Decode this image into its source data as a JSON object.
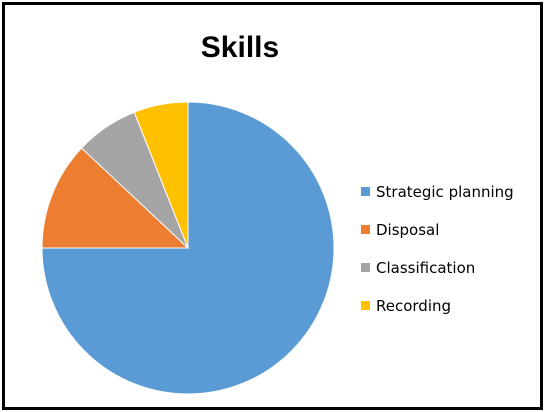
{
  "chart_data": {
    "type": "pie",
    "title": "Skills",
    "categories": [
      "Strategic planning",
      "Disposal",
      "Classification",
      "Recording"
    ],
    "values": [
      75,
      12,
      7,
      6
    ],
    "colors": [
      "#5B9BD5",
      "#ED7D31",
      "#A5A5A5",
      "#FFC000"
    ],
    "legend_position": "right"
  }
}
